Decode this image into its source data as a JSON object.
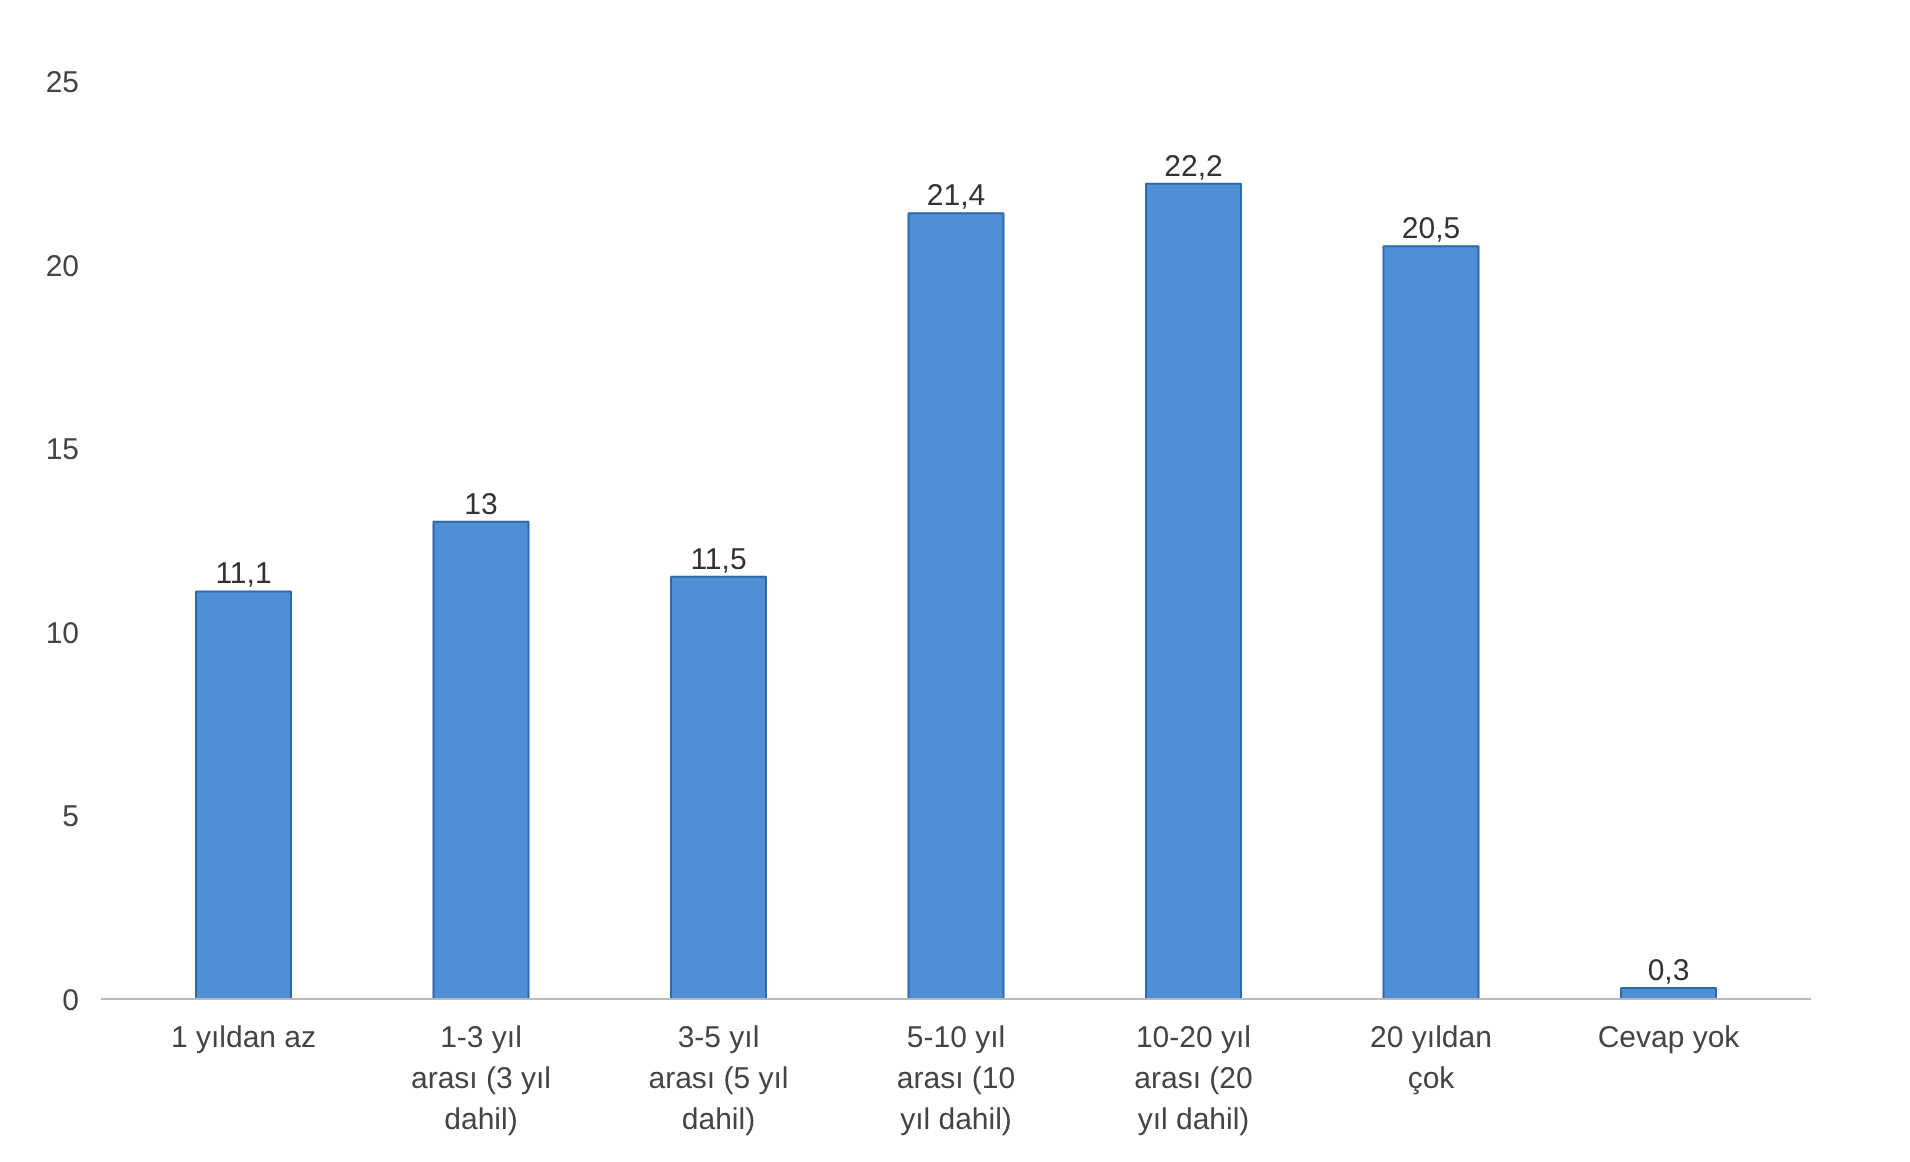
{
  "chart_data": {
    "type": "bar",
    "categories": [
      "1 yıldan az",
      "1-3 yıl arası (3 yıl dahil)",
      "3-5 yıl arası (5 yıl dahil)",
      "5-10 yıl arası (10 yıl dahil)",
      "10-20 yıl arası (20 yıl dahil)",
      "20 yıldan çok",
      "Cevap yok"
    ],
    "values": [
      11.1,
      13,
      11.5,
      21.4,
      22.2,
      20.5,
      0.3
    ],
    "value_labels": [
      "11,1",
      "13",
      "11,5",
      "21,4",
      "22,2",
      "20,5",
      "0,3"
    ],
    "color": "#4f8fd6",
    "ylim": [
      0,
      25
    ],
    "yticks": [
      0,
      5,
      10,
      15,
      20,
      25
    ],
    "grid": false
  }
}
